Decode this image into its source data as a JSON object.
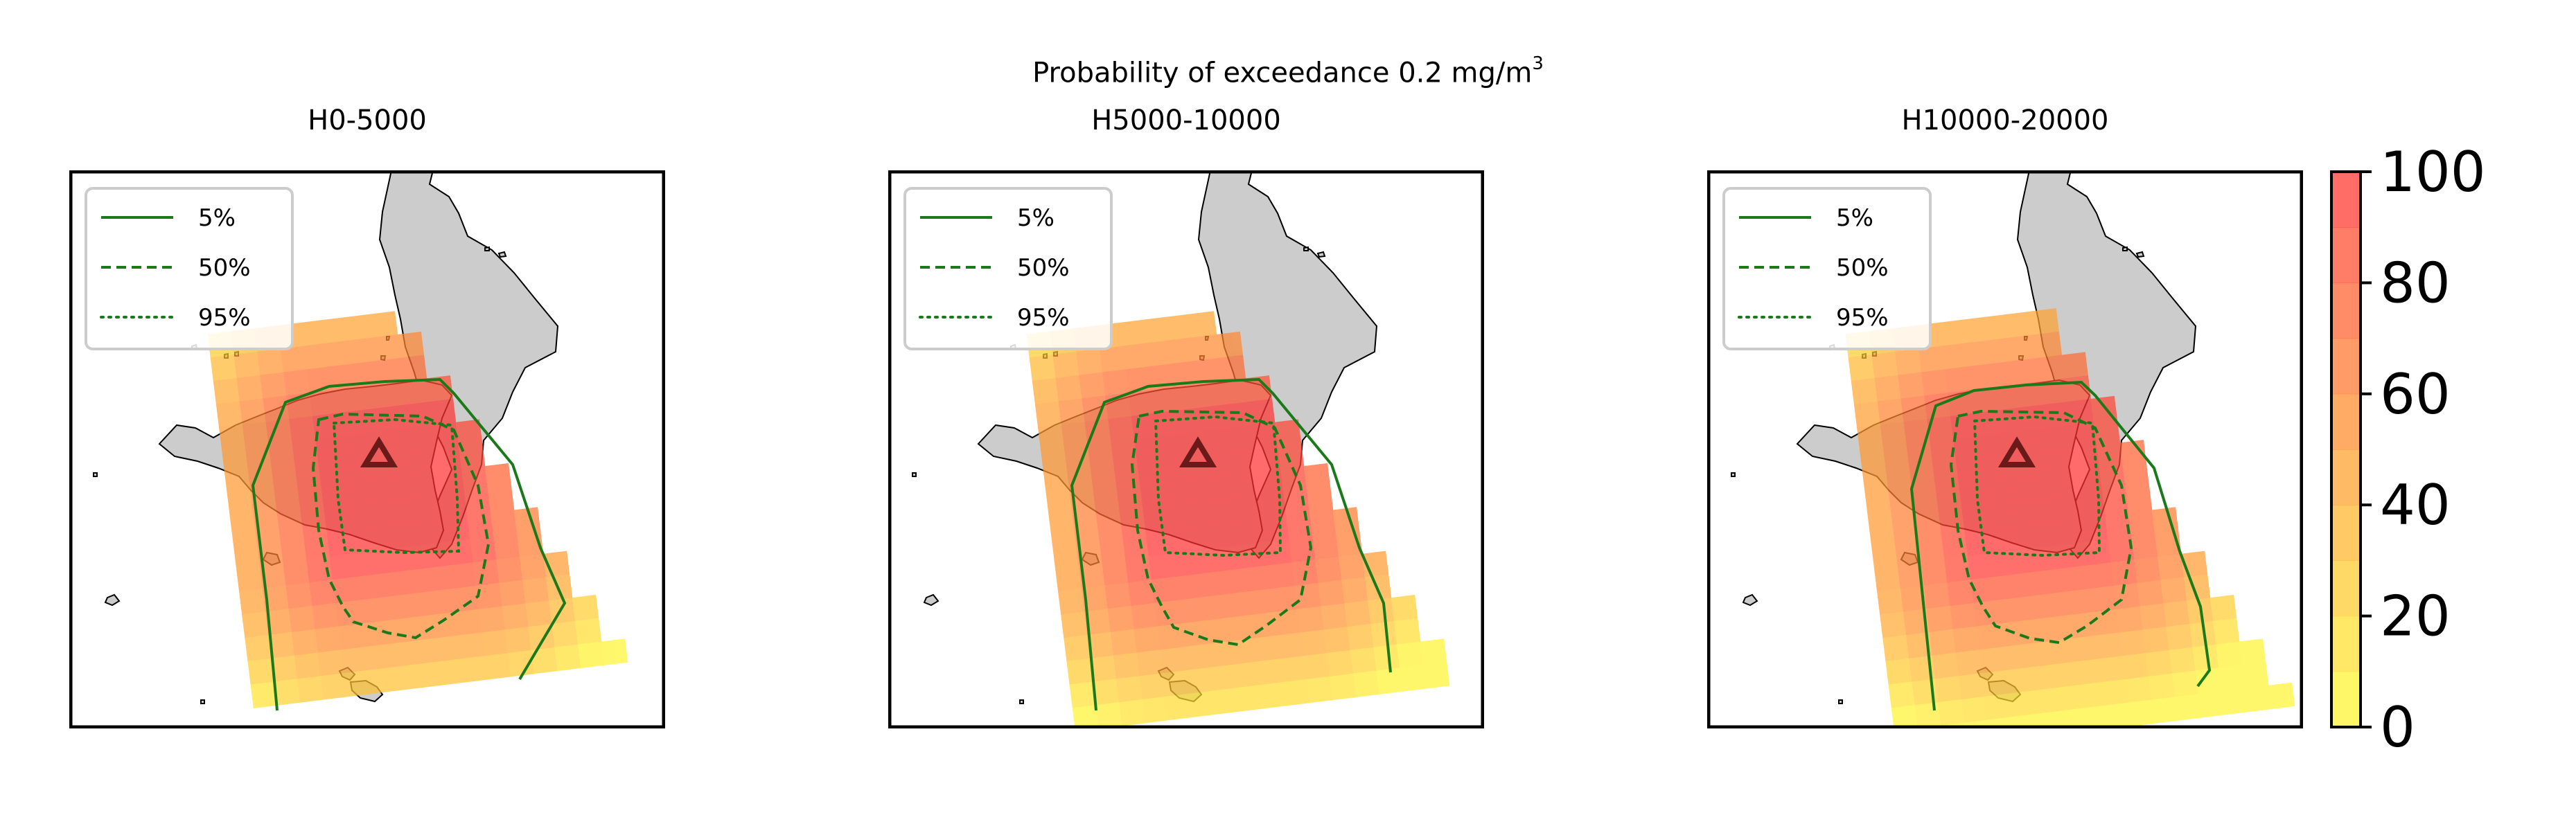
{
  "figure": {
    "title_prefix": "Probability of exceedance 0.2 mg/m",
    "title_superscript": "3"
  },
  "panels": [
    {
      "title": "H0-5000"
    },
    {
      "title": "H5000-10000"
    },
    {
      "title": "H10000-20000"
    }
  ],
  "legend": [
    {
      "label": "5%",
      "style": "solid"
    },
    {
      "label": "50%",
      "style": "dashed"
    },
    {
      "label": "95%",
      "style": "dotted"
    }
  ],
  "colorbar": {
    "min": 0,
    "max": 100,
    "ticks": [
      "0",
      "20",
      "40",
      "60",
      "80",
      "100"
    ],
    "colors": [
      "#ffff33",
      "#ff3333"
    ]
  },
  "colors": {
    "land": "#cccccc",
    "contour": "#1a7a1a",
    "vent_marker": "#6b1a1a"
  },
  "icons": {
    "vent": "triangle-up-icon"
  }
}
